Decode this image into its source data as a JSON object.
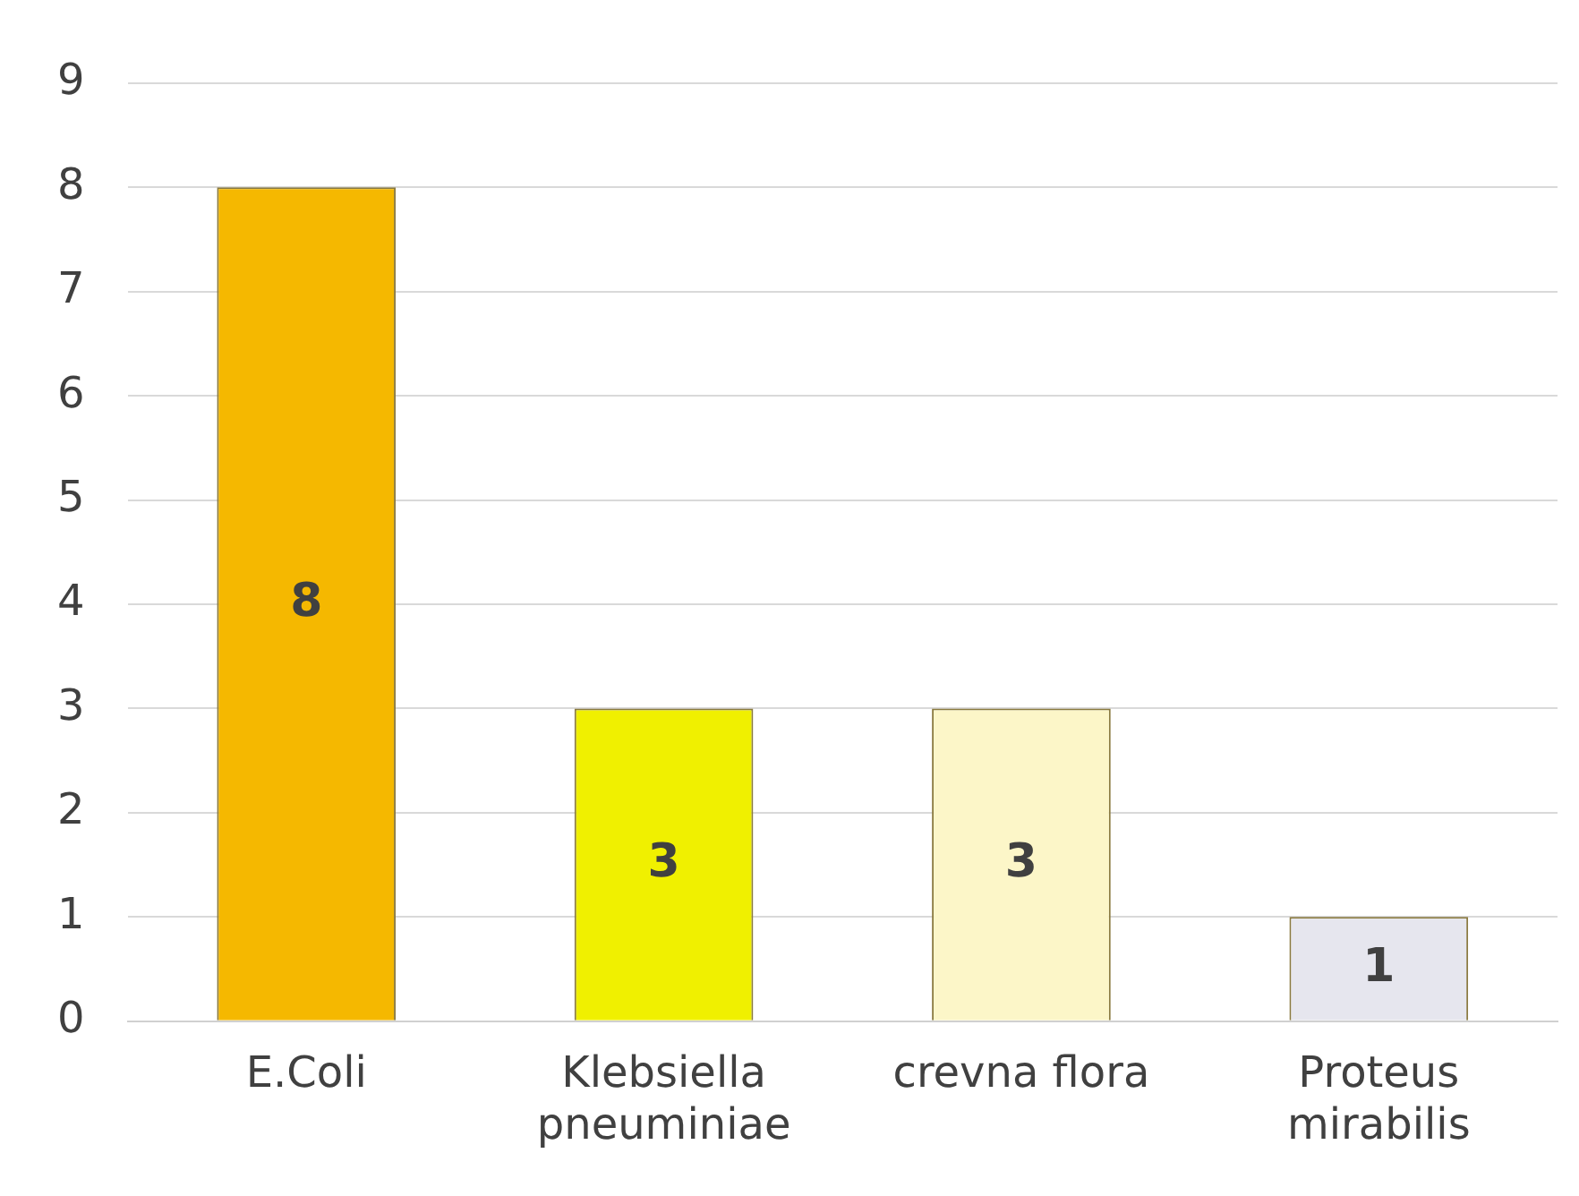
{
  "chart_data": {
    "type": "bar",
    "categories": [
      "E.Coli",
      "Klebsiella pneuminiae",
      "crevna flora",
      "Proteus mirabilis"
    ],
    "values": [
      8,
      3,
      3,
      1
    ],
    "colors": [
      "#f5b800",
      "#f0f000",
      "#fcf6c8",
      "#e6e6ee"
    ],
    "ylim": [
      0,
      9
    ],
    "yticks": [
      0,
      1,
      2,
      3,
      4,
      5,
      6,
      7,
      8,
      9
    ],
    "grid": "y",
    "legend": false,
    "data_labels": true
  }
}
